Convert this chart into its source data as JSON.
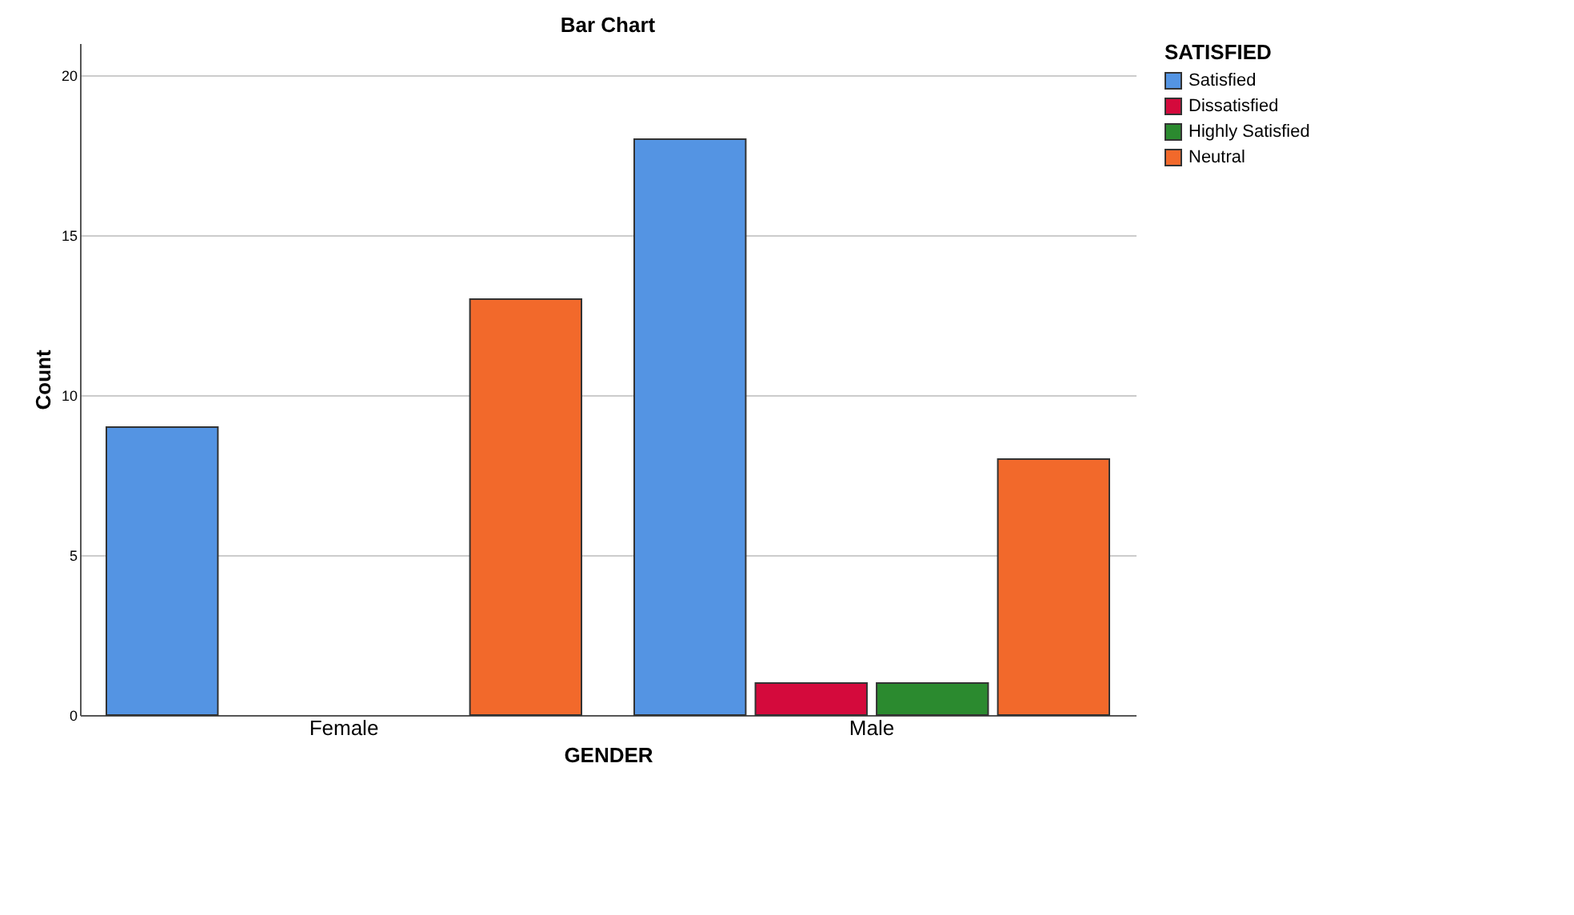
{
  "chart_data": {
    "type": "bar",
    "title": "Bar Chart",
    "xlabel": "GENDER",
    "ylabel": "Count",
    "legend_title": "SATISFIED",
    "categories": [
      "Female",
      "Male"
    ],
    "series": [
      {
        "name": "Satisfied",
        "color": "#5494e3",
        "values": [
          9,
          18
        ]
      },
      {
        "name": "Dissatisfied",
        "color": "#d40a3c",
        "values": [
          null,
          1
        ]
      },
      {
        "name": "Highly Satisfied",
        "color": "#2b8a2f",
        "values": [
          null,
          1
        ]
      },
      {
        "name": "Neutral",
        "color": "#f2692b",
        "values": [
          13,
          8
        ]
      }
    ],
    "ylim": [
      0,
      21
    ],
    "yticks": [
      0,
      5,
      10,
      15,
      20
    ],
    "grid": "y",
    "legend": "top right"
  }
}
